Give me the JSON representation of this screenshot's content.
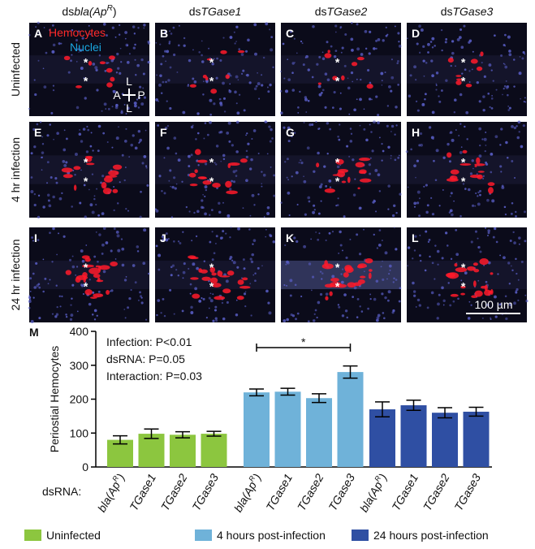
{
  "figure": {
    "column_headers": [
      {
        "prefix": "ds",
        "gene": "bla(Ap",
        "sup": "R",
        "close": ")"
      },
      {
        "prefix": "ds",
        "gene": "TGase1"
      },
      {
        "prefix": "ds",
        "gene": "TGase2"
      },
      {
        "prefix": "ds",
        "gene": "TGase3"
      }
    ],
    "row_labels": [
      "Uninfected",
      "4 hr infection",
      "24 hr infection"
    ],
    "panels": [
      "A",
      "B",
      "C",
      "D",
      "E",
      "F",
      "G",
      "H",
      "I",
      "J",
      "K",
      "L"
    ],
    "channel_labels": [
      "Hemocytes",
      "Nuclei"
    ],
    "orientation": {
      "anterior": "A",
      "posterior": "P",
      "lateral": "L"
    },
    "marker": "*",
    "scale_bar": "100 µm"
  },
  "chart_data": {
    "type": "bar",
    "panel_label": "M",
    "y_label": "Periostial Hemocytes",
    "x_label": "dsRNA:",
    "categories": [
      {
        "text": "bla(Ap",
        "sup": "R",
        "close": ")"
      },
      {
        "text": "TGase1"
      },
      {
        "text": "TGase2"
      },
      {
        "text": "TGase3"
      }
    ],
    "series": [
      {
        "name": "Uninfected",
        "color": "#8cc63f",
        "values": [
          80,
          98,
          95,
          98
        ],
        "errors": [
          12,
          14,
          9,
          7
        ]
      },
      {
        "name": "4 hours post-infection",
        "color": "#6fb2d9",
        "values": [
          220,
          222,
          203,
          280
        ],
        "errors": [
          10,
          10,
          13,
          18
        ]
      },
      {
        "name": "24 hours post-infection",
        "color": "#2f4fa3",
        "values": [
          170,
          182,
          160,
          163
        ],
        "errors": [
          22,
          15,
          15,
          13
        ]
      }
    ],
    "statistics": [
      "Infection: P<0.01",
      "dsRNA: P=0.05",
      "Interaction: P=0.03"
    ],
    "significance": "*",
    "ylim": [
      0,
      400
    ],
    "yticks": [
      0,
      100,
      200,
      300,
      400
    ]
  }
}
